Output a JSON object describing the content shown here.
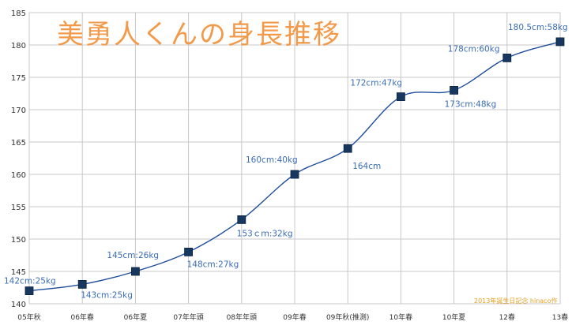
{
  "title": "美勇人くんの身長推移",
  "credit": "2013年誕生日記念 hinaco作",
  "colors": {
    "line": "#1f4e9c",
    "marker": "#17375e",
    "label": "#3a6db5",
    "grid": "#c8c8c8",
    "axis_text": "#333333",
    "title": "#f29a4a"
  },
  "chart_data": {
    "type": "line",
    "categories": [
      "05年秋",
      "06年春",
      "06年夏",
      "07年年頭",
      "08年年頭",
      "09年春",
      "09年秋(推測)",
      "10年春",
      "10年夏",
      "12春",
      "13春"
    ],
    "series": [
      {
        "values": [
          142,
          143,
          145,
          148,
          153,
          160,
          164,
          172,
          173,
          178,
          180.5
        ]
      }
    ],
    "data_labels": [
      "142cm:25kg",
      "143cm:25kg",
      "145cm:26kg",
      "148cm:27kg",
      "153ｃｍ:32kg",
      "160cm:40kg",
      "164cm",
      "172cm:47kg",
      "173cm:48kg",
      "178cm:60kg",
      "180.5cm:58kg"
    ],
    "ylim": [
      140,
      185
    ],
    "yticks": [
      140,
      145,
      150,
      155,
      160,
      165,
      170,
      175,
      180,
      185
    ],
    "grid": true,
    "legend": "none"
  }
}
